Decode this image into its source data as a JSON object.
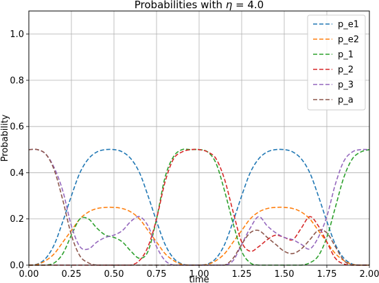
{
  "chart_data": {
    "type": "line",
    "title_prefix": "Probabilities with ",
    "title_symbol": "η",
    "title_suffix": " = 4.0",
    "xlabel": "time",
    "ylabel": "Probability",
    "xlim": [
      0.0,
      2.0
    ],
    "ylim": [
      0.0,
      1.1
    ],
    "xticks": [
      0.0,
      0.25,
      0.5,
      0.75,
      1.0,
      1.25,
      1.5,
      1.75,
      2.0
    ],
    "xtick_labels": [
      "0.00",
      "0.25",
      "0.50",
      "0.75",
      "1.00",
      "1.25",
      "1.50",
      "1.75",
      "2.00"
    ],
    "yticks": [
      0.0,
      0.2,
      0.4,
      0.6,
      0.8,
      1.0
    ],
    "ytick_labels": [
      "0.0",
      "0.2",
      "0.4",
      "0.6",
      "0.8",
      "1.0"
    ],
    "grid": true,
    "legend_position": "top-right",
    "line_style": "dashed",
    "x": [
      0.0,
      0.05,
      0.1,
      0.15,
      0.2,
      0.25,
      0.3,
      0.35,
      0.4,
      0.45,
      0.5,
      0.55,
      0.6,
      0.65,
      0.7,
      0.75,
      0.8,
      0.85,
      0.9,
      0.95,
      1.0,
      1.05,
      1.1,
      1.15,
      1.2,
      1.25,
      1.3,
      1.35,
      1.4,
      1.45,
      1.5,
      1.55,
      1.6,
      1.65,
      1.7,
      1.75,
      1.8,
      1.85,
      1.9,
      1.95,
      2.0
    ],
    "series": [
      {
        "name": "p_e1",
        "color": "#1f77b4",
        "values": [
          0.0,
          0.005,
          0.03,
          0.09,
          0.19,
          0.3,
          0.4,
          0.46,
          0.49,
          0.5,
          0.5,
          0.49,
          0.46,
          0.4,
          0.3,
          0.19,
          0.09,
          0.03,
          0.005,
          0.0,
          0.0,
          0.005,
          0.03,
          0.09,
          0.19,
          0.3,
          0.4,
          0.46,
          0.49,
          0.5,
          0.5,
          0.49,
          0.46,
          0.4,
          0.3,
          0.19,
          0.09,
          0.03,
          0.005,
          0.0,
          0.0
        ]
      },
      {
        "name": "p_e2",
        "color": "#ff7f0e",
        "values": [
          0.0,
          0.003,
          0.02,
          0.05,
          0.1,
          0.15,
          0.2,
          0.23,
          0.245,
          0.25,
          0.25,
          0.245,
          0.23,
          0.2,
          0.15,
          0.1,
          0.05,
          0.02,
          0.003,
          0.0,
          0.0,
          0.003,
          0.02,
          0.05,
          0.1,
          0.15,
          0.2,
          0.23,
          0.245,
          0.25,
          0.25,
          0.245,
          0.23,
          0.2,
          0.15,
          0.1,
          0.05,
          0.02,
          0.003,
          0.0,
          0.0
        ]
      },
      {
        "name": "p_1",
        "color": "#2ca02c",
        "values": [
          0.0,
          0.0,
          0.0,
          0.01,
          0.05,
          0.13,
          0.2,
          0.2,
          0.16,
          0.13,
          0.12,
          0.1,
          0.06,
          0.03,
          0.06,
          0.2,
          0.38,
          0.47,
          0.5,
          0.5,
          0.5,
          0.49,
          0.44,
          0.32,
          0.18,
          0.06,
          0.01,
          0.0,
          0.0,
          0.0,
          0.0,
          0.0,
          0.0,
          0.01,
          0.04,
          0.12,
          0.25,
          0.38,
          0.46,
          0.49,
          0.5
        ]
      },
      {
        "name": "p_2",
        "color": "#d62728",
        "values": [
          0.0,
          0.0,
          0.0,
          0.0,
          0.0,
          0.0,
          0.0,
          0.0,
          0.0,
          0.0,
          0.0,
          0.0,
          0.0,
          0.02,
          0.08,
          0.2,
          0.36,
          0.46,
          0.49,
          0.5,
          0.5,
          0.49,
          0.46,
          0.37,
          0.23,
          0.1,
          0.06,
          0.08,
          0.11,
          0.13,
          0.12,
          0.11,
          0.16,
          0.21,
          0.17,
          0.1,
          0.03,
          0.005,
          0.0,
          0.0,
          0.0
        ]
      },
      {
        "name": "p_3",
        "color": "#9467bd",
        "values": [
          0.5,
          0.5,
          0.48,
          0.42,
          0.32,
          0.17,
          0.08,
          0.07,
          0.1,
          0.12,
          0.13,
          0.15,
          0.19,
          0.21,
          0.17,
          0.08,
          0.02,
          0.0,
          0.0,
          0.0,
          0.0,
          0.0,
          0.0,
          0.0,
          0.02,
          0.09,
          0.16,
          0.21,
          0.17,
          0.14,
          0.12,
          0.11,
          0.09,
          0.07,
          0.12,
          0.21,
          0.35,
          0.45,
          0.49,
          0.5,
          0.5
        ]
      },
      {
        "name": "p_a",
        "color": "#8c564b",
        "values": [
          0.5,
          0.5,
          0.48,
          0.41,
          0.28,
          0.13,
          0.04,
          0.01,
          0.0,
          0.0,
          0.0,
          0.0,
          0.0,
          0.0,
          0.0,
          0.0,
          0.0,
          0.0,
          0.0,
          0.0,
          0.0,
          0.0,
          0.0,
          0.0,
          0.03,
          0.09,
          0.14,
          0.15,
          0.12,
          0.09,
          0.06,
          0.05,
          0.07,
          0.11,
          0.15,
          0.14,
          0.08,
          0.02,
          0.0,
          0.0,
          0.0
        ]
      }
    ]
  }
}
